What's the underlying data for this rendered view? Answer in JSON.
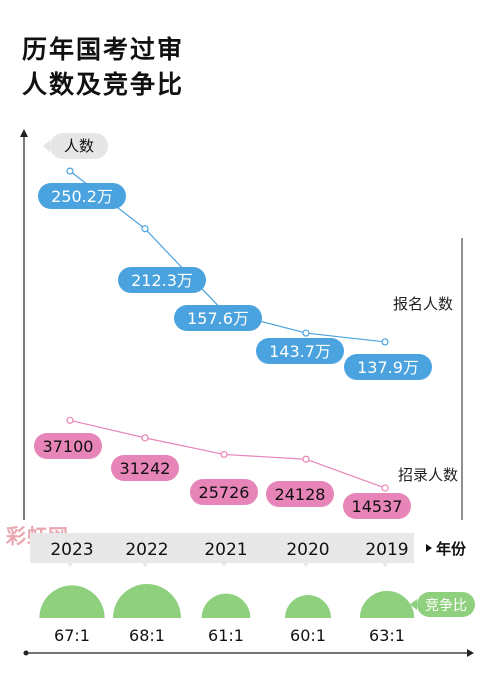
{
  "title_line1": "历年国考过审",
  "title_line2": "人数及竞争比",
  "watermark": "彩虹网",
  "colors": {
    "applicants": "#4aa3df",
    "admitted": "#e784b8",
    "ratio": "#8fd07f",
    "axis": "#222222",
    "year_band": "#e8e8e8"
  },
  "chart_data": {
    "type": "line",
    "categories": [
      "2023",
      "2022",
      "2021",
      "2020",
      "2019"
    ],
    "y_axis_label": "人数",
    "x_axis_label": "年份",
    "series": [
      {
        "name": "报名人数",
        "values": [
          2502000,
          2123000,
          1576000,
          1437000,
          1379000
        ],
        "labels": [
          "250.2万",
          "212.3万",
          "157.6万",
          "143.7万",
          "137.9万"
        ]
      },
      {
        "name": "招录人数",
        "values": [
          37100,
          31242,
          25726,
          24128,
          14537
        ],
        "labels": [
          "37100",
          "31242",
          "25726",
          "24128",
          "14537"
        ]
      }
    ],
    "ratio": {
      "name": "竞争比",
      "values": [
        67,
        68,
        61,
        60,
        63
      ],
      "labels": [
        "67:1",
        "68:1",
        "61:1",
        "60:1",
        "63:1"
      ]
    }
  }
}
